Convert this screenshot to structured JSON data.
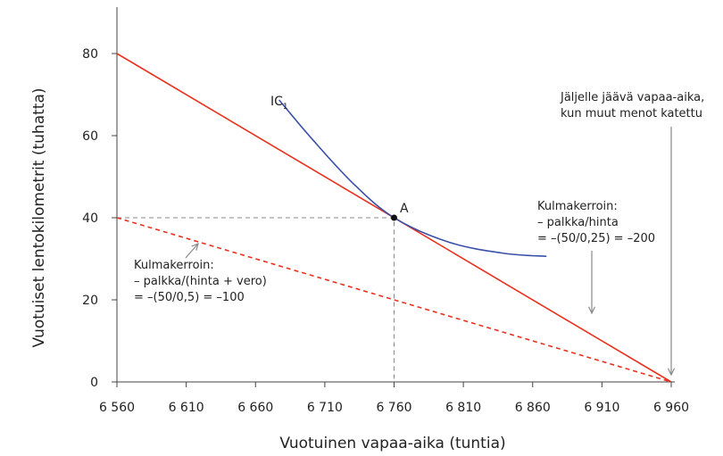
{
  "chart_data": {
    "type": "line",
    "xlabel": "Vuotuinen vapaa-aika (tuntia)",
    "ylabel": "Vuotuiset lentokilometrit (tuhatta)",
    "xlim": [
      6560,
      6960
    ],
    "ylim": [
      0,
      80
    ],
    "x_ticks": [
      6560,
      6610,
      6660,
      6710,
      6760,
      6810,
      6860,
      6910,
      6960
    ],
    "x_tick_labels": [
      "6 560",
      "6 610",
      "6 660",
      "6 710",
      "6 760",
      "6 810",
      "6 860",
      "6 910",
      "6 960"
    ],
    "y_ticks": [
      0,
      20,
      40,
      60,
      80
    ],
    "y_tick_labels": [
      "0",
      "20",
      "40",
      "60",
      "80"
    ],
    "grid": false,
    "series": [
      {
        "name": "budget-no-tax",
        "style": "solid",
        "color": "#e8321e",
        "points": [
          [
            6560,
            80
          ],
          [
            6960,
            0
          ]
        ]
      },
      {
        "name": "budget-with-tax",
        "style": "dashed",
        "color": "#e8321e",
        "points": [
          [
            6560,
            40
          ],
          [
            6960,
            0
          ]
        ]
      },
      {
        "name": "IC₁",
        "style": "solid",
        "color": "#3a4fa8",
        "points": [
          [
            6677,
            68.7
          ],
          [
            6700,
            59.5
          ],
          [
            6730,
            48.5
          ],
          [
            6760,
            40
          ],
          [
            6800,
            34
          ],
          [
            6840,
            31.3
          ],
          [
            6870,
            30.6
          ]
        ]
      }
    ],
    "point": {
      "label": "A",
      "x": 6760,
      "y": 40
    },
    "ic_label": "IC",
    "ic_sub": "1",
    "annotations": {
      "remaining": [
        "Jäljelle jäävä vapaa-aika,",
        "kun muut menot katettu"
      ],
      "slope_no_tax": [
        "Kulmakerroin:",
        "– palkka/hinta",
        "= –(50/0,25) = –200"
      ],
      "slope_tax": [
        "Kulmakerroin:",
        "– palkka/(hinta + vero)",
        "= –(50/0,5) = –100"
      ]
    }
  }
}
